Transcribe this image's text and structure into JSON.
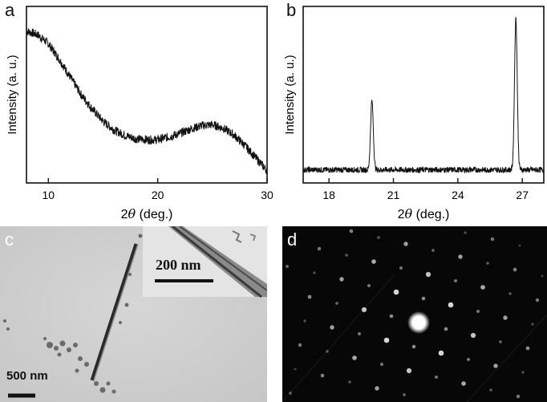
{
  "panels": {
    "a": "a",
    "b": "b",
    "c": "c",
    "d": "d"
  },
  "chart_data": [
    {
      "id": "a",
      "type": "line",
      "xlabel_prefix": "2",
      "xlabel_theta": "θ",
      "xlabel_suffix": " (deg.)",
      "ylabel": "Intensity (a. u.)",
      "xlim": [
        8,
        30
      ],
      "ylim": [
        0,
        1
      ],
      "xticks": [
        10,
        20,
        30
      ],
      "series": [
        {
          "x": [
            8,
            9,
            10,
            11,
            12,
            13,
            14,
            15,
            16,
            17,
            18,
            19,
            20,
            21,
            22,
            23,
            24,
            25,
            26,
            27,
            28,
            29,
            30
          ],
          "values": [
            0.86,
            0.84,
            0.79,
            0.7,
            0.6,
            0.5,
            0.42,
            0.35,
            0.3,
            0.27,
            0.25,
            0.245,
            0.245,
            0.26,
            0.28,
            0.305,
            0.325,
            0.33,
            0.31,
            0.27,
            0.21,
            0.14,
            0.07
          ]
        }
      ]
    },
    {
      "id": "b",
      "type": "line",
      "xlabel_prefix": "2",
      "xlabel_theta": "θ",
      "xlabel_suffix": " (deg.)",
      "ylabel": "Intensity (a. u.)",
      "xlim": [
        16.8,
        28
      ],
      "ylim": [
        0,
        1
      ],
      "xticks": [
        18,
        21,
        24,
        27
      ],
      "baseline": 0.08,
      "peaks": [
        {
          "x": 20.0,
          "height": 0.5
        },
        {
          "x": 26.7,
          "height": 1.0
        }
      ]
    }
  ],
  "tem": {
    "scalebar_main": "500 nm",
    "scalebar_inset": "200 nm"
  }
}
